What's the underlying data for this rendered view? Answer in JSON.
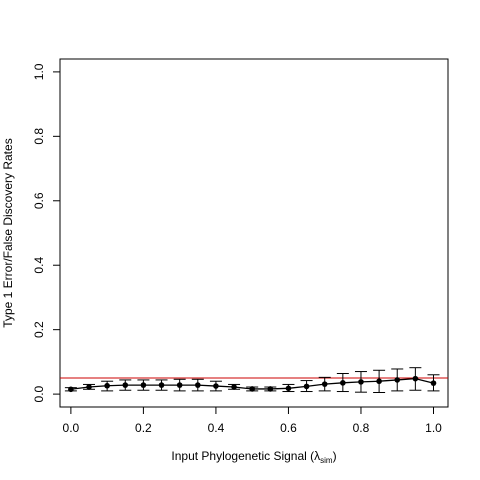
{
  "chart_data": {
    "type": "line",
    "title": "",
    "xlabel_main": "Input Phylogenetic Signal (",
    "xlabel_symbol": "λ",
    "xlabel_sub": "sim",
    "xlabel_end": ")",
    "ylabel": "Type 1 Error/False Discovery Rates",
    "xlim": [
      -0.03,
      1.04
    ],
    "ylim": [
      -0.04,
      1.04
    ],
    "x_ticks": [
      {
        "value": 0.0,
        "label": "0.0"
      },
      {
        "value": 0.2,
        "label": "0.2"
      },
      {
        "value": 0.4,
        "label": "0.4"
      },
      {
        "value": 0.6,
        "label": "0.6"
      },
      {
        "value": 0.8,
        "label": "0.8"
      },
      {
        "value": 1.0,
        "label": "1.0"
      }
    ],
    "y_ticks": [
      {
        "value": 0.0,
        "label": "0.0"
      },
      {
        "value": 0.2,
        "label": "0.2"
      },
      {
        "value": 0.4,
        "label": "0.4"
      },
      {
        "value": 0.6,
        "label": "0.6"
      },
      {
        "value": 0.8,
        "label": "0.8"
      },
      {
        "value": 1.0,
        "label": "1.0"
      }
    ],
    "reference_line": {
      "y": 0.05,
      "color": "#cc0000"
    },
    "series": [
      {
        "color": "#000000",
        "points": [
          {
            "x": 0.0,
            "y": 0.015,
            "lo": 0.01,
            "hi": 0.02
          },
          {
            "x": 0.05,
            "y": 0.022,
            "lo": 0.015,
            "hi": 0.03
          },
          {
            "x": 0.1,
            "y": 0.026,
            "lo": 0.01,
            "hi": 0.04
          },
          {
            "x": 0.15,
            "y": 0.028,
            "lo": 0.012,
            "hi": 0.044
          },
          {
            "x": 0.2,
            "y": 0.028,
            "lo": 0.012,
            "hi": 0.044
          },
          {
            "x": 0.25,
            "y": 0.028,
            "lo": 0.012,
            "hi": 0.044
          },
          {
            "x": 0.3,
            "y": 0.028,
            "lo": 0.01,
            "hi": 0.046
          },
          {
            "x": 0.35,
            "y": 0.028,
            "lo": 0.01,
            "hi": 0.046
          },
          {
            "x": 0.4,
            "y": 0.025,
            "lo": 0.01,
            "hi": 0.04
          },
          {
            "x": 0.45,
            "y": 0.022,
            "lo": 0.015,
            "hi": 0.03
          },
          {
            "x": 0.5,
            "y": 0.016,
            "lo": 0.01,
            "hi": 0.022
          },
          {
            "x": 0.55,
            "y": 0.016,
            "lo": 0.01,
            "hi": 0.022
          },
          {
            "x": 0.6,
            "y": 0.018,
            "lo": 0.008,
            "hi": 0.03
          },
          {
            "x": 0.65,
            "y": 0.024,
            "lo": 0.008,
            "hi": 0.042
          },
          {
            "x": 0.7,
            "y": 0.031,
            "lo": 0.01,
            "hi": 0.052
          },
          {
            "x": 0.75,
            "y": 0.035,
            "lo": 0.008,
            "hi": 0.064
          },
          {
            "x": 0.8,
            "y": 0.038,
            "lo": 0.006,
            "hi": 0.07
          },
          {
            "x": 0.85,
            "y": 0.04,
            "lo": 0.005,
            "hi": 0.074
          },
          {
            "x": 0.9,
            "y": 0.044,
            "lo": 0.01,
            "hi": 0.078
          },
          {
            "x": 0.95,
            "y": 0.048,
            "lo": 0.012,
            "hi": 0.082
          },
          {
            "x": 1.0,
            "y": 0.034,
            "lo": 0.01,
            "hi": 0.06
          }
        ]
      }
    ]
  }
}
